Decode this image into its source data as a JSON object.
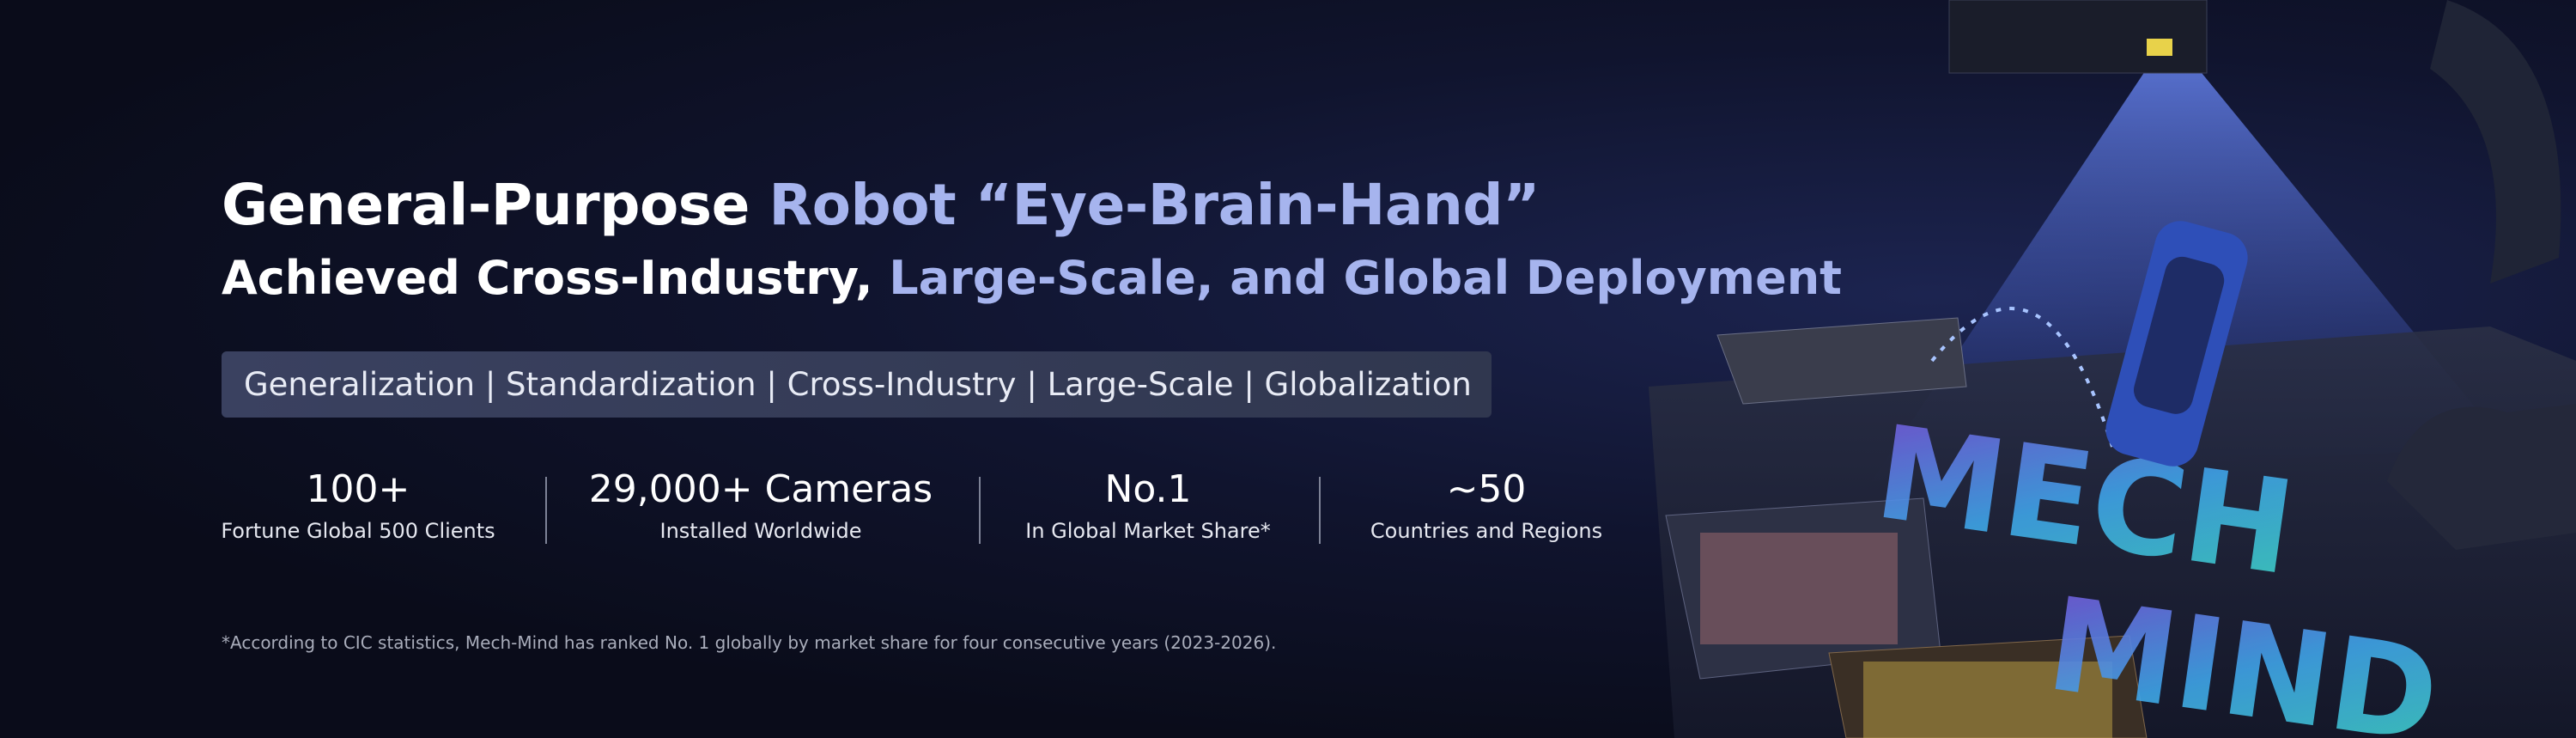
{
  "headline": {
    "line1": [
      {
        "text": "General-Purpose",
        "highlight": false
      },
      {
        "text": "Robot “Eye-Brain-Hand”",
        "highlight": true
      }
    ],
    "line2": [
      {
        "text": "Achieved Cross-Industry,",
        "highlight": false
      },
      {
        "text": "Large-Scale, and Global Deployment",
        "highlight": true
      }
    ]
  },
  "tagline": "Generalization | Standardization | Cross-Industry | Large-Scale | Globalization",
  "stats": [
    {
      "value": "100+",
      "label": "Fortune Global 500 Clients"
    },
    {
      "value": "29,000+ Cameras",
      "label": "Installed Worldwide"
    },
    {
      "value": "No.1",
      "label": "In Global Market Share*"
    },
    {
      "value": "~50",
      "label": "Countries and Regions"
    }
  ],
  "footnote": "*According to CIC statistics, Mech-Mind has ranked No. 1 globally by market share for four consecutive years (2023-2026)."
}
